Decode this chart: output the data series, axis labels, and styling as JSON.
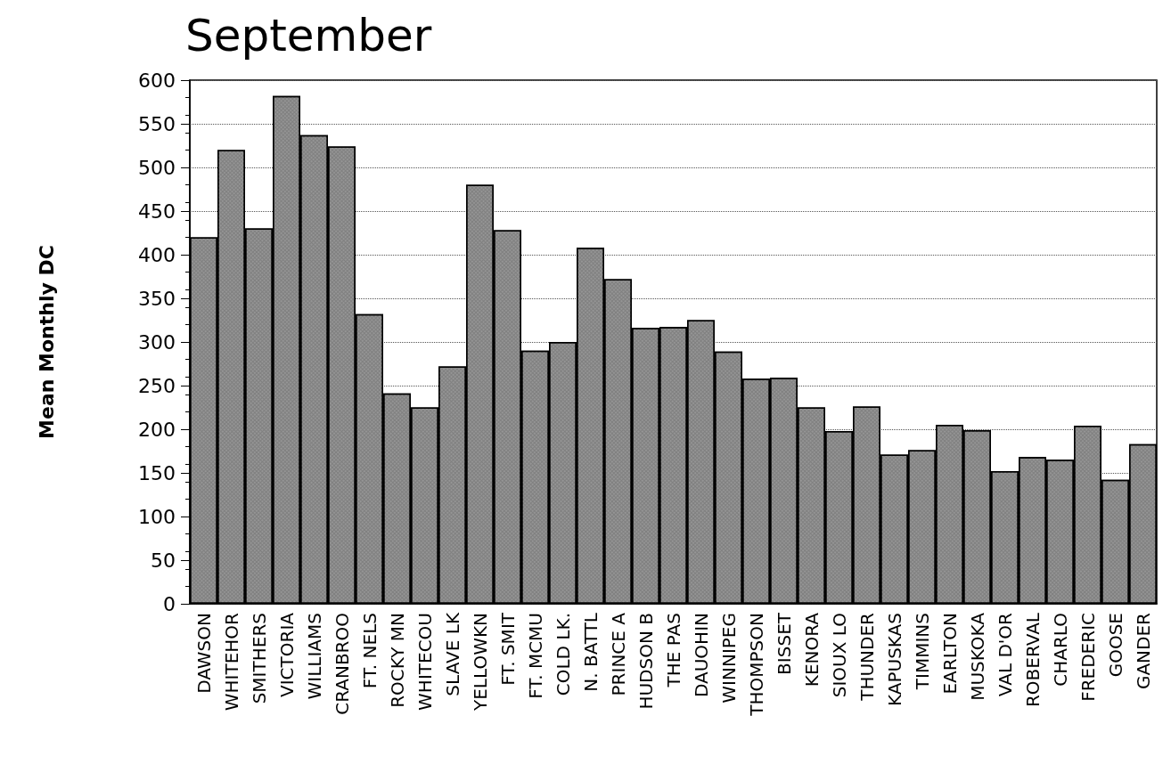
{
  "chart_data": {
    "type": "bar",
    "title": "September",
    "ylabel": "Mean Monthly DC",
    "categories": [
      "DAWSON",
      "WHITEHOR",
      "SMITHERS",
      "VICTORIA",
      "WILLIAMS",
      "CRANBROO",
      "FT. NELS",
      "ROCKY MN",
      "WHITECOU",
      "SLAVE LK",
      "YELLOWKN",
      "FT. SMIT",
      "FT. MCMU",
      "COLD LK.",
      "N. BATTL",
      "PRINCE A",
      "HUDSON B",
      "THE PAS",
      "DAUOHIN",
      "WINNIPEG",
      "THOMPSON",
      "BISSET",
      "KENORA",
      "SIOUX LO",
      "THUNDER",
      "KAPUSKAS",
      "TIMMINS",
      "EARLTON",
      "MUSKOKA",
      "VAL D'OR",
      "ROBERVAL",
      "CHARLO",
      "FREDERIC",
      "GOOSE",
      "GANDER"
    ],
    "values": [
      420,
      520,
      430,
      582,
      537,
      524,
      332,
      241,
      225,
      272,
      480,
      428,
      290,
      300,
      408,
      372,
      316,
      317,
      325,
      289,
      258,
      259,
      225,
      198,
      226,
      171,
      176,
      205,
      199,
      152,
      168,
      165,
      204,
      142,
      183
    ],
    "color": "#808080",
    "ylim": [
      0,
      600
    ],
    "yticks": [
      0,
      50,
      100,
      150,
      200,
      250,
      300,
      350,
      400,
      450,
      500,
      550,
      600
    ],
    "grid": "y"
  }
}
